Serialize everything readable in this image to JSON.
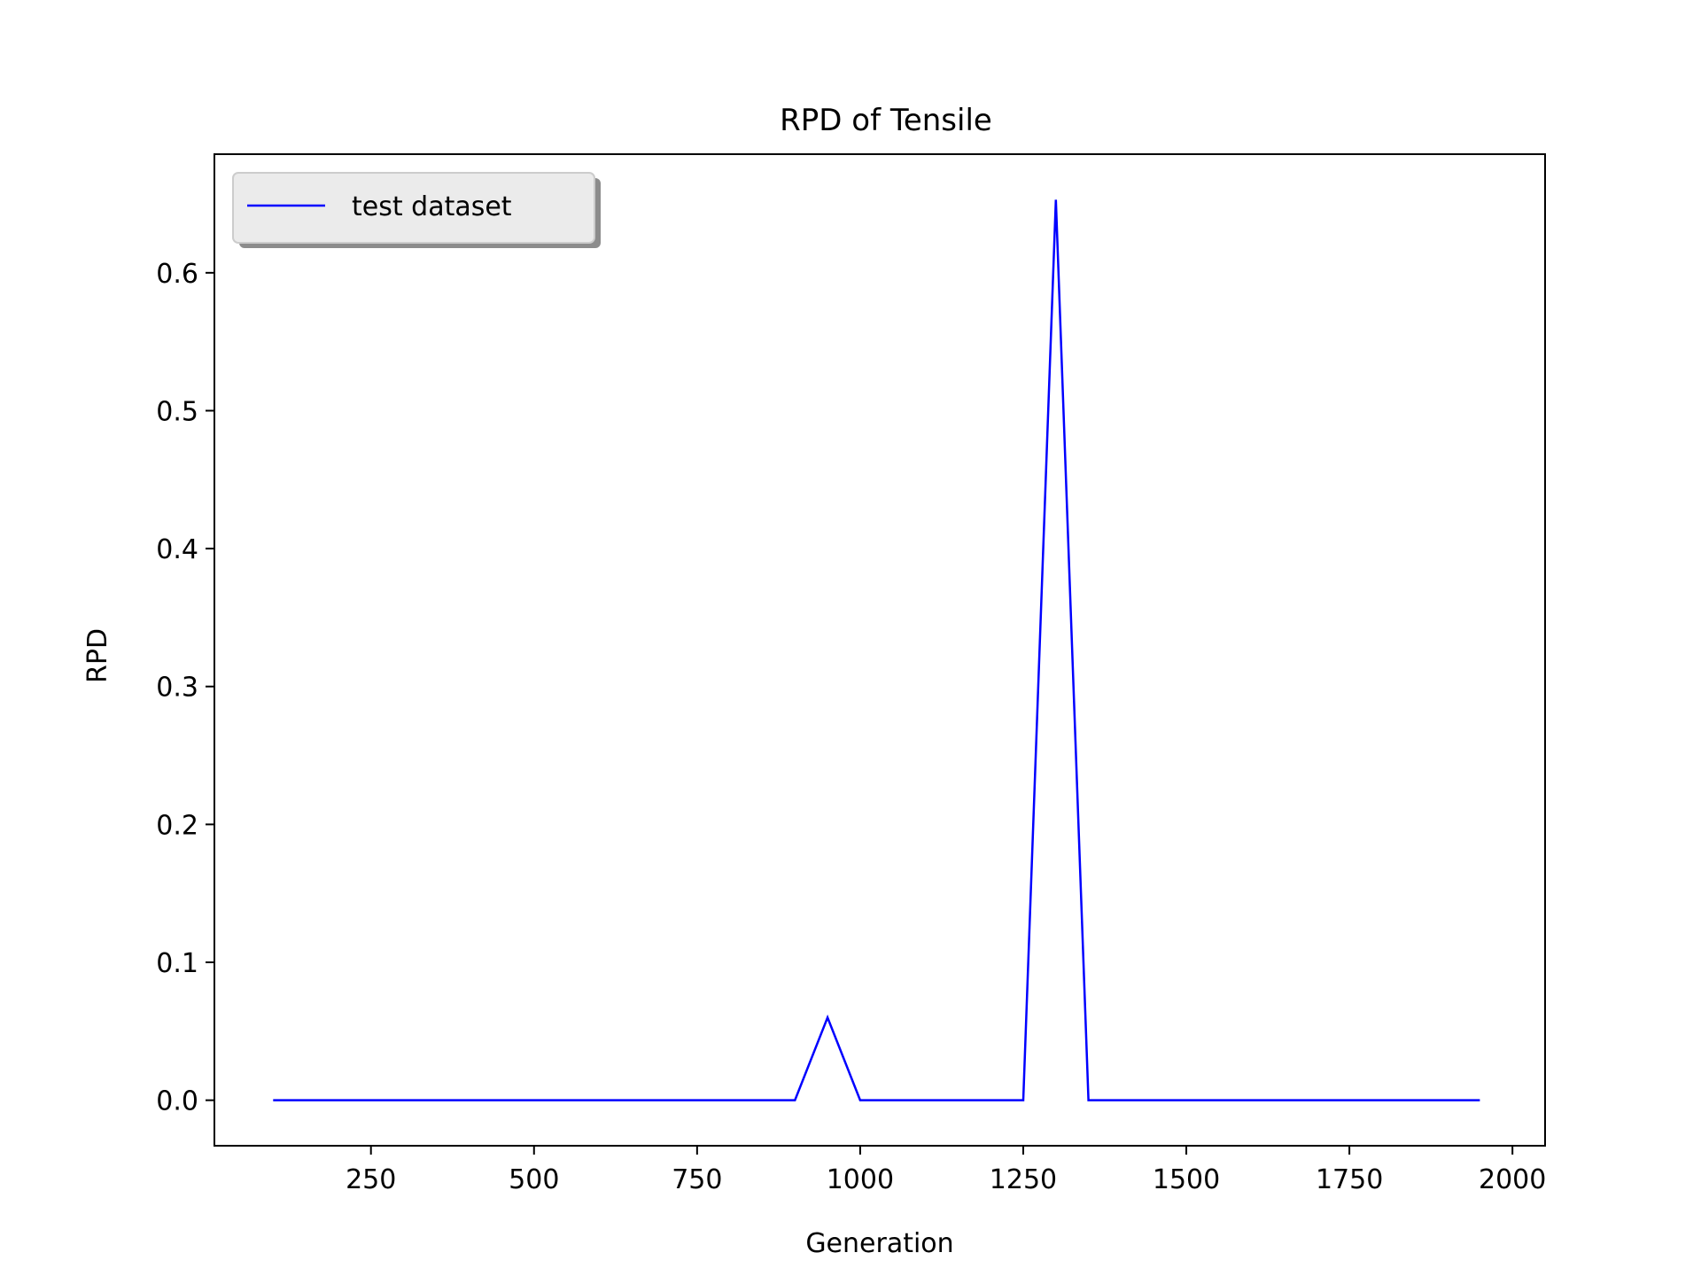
{
  "chart_data": {
    "type": "line",
    "title": "RPD of Tensile",
    "xlabel": "Generation",
    "ylabel": "RPD",
    "xlim": [
      10,
      2050
    ],
    "ylim": [
      -0.033,
      0.686
    ],
    "xticks": [
      250,
      500,
      750,
      1000,
      1250,
      1500,
      1750,
      2000
    ],
    "yticks": [
      0.0,
      0.1,
      0.2,
      0.3,
      0.4,
      0.5,
      0.6
    ],
    "ytick_labels": [
      "0.0",
      "0.1",
      "0.2",
      "0.3",
      "0.4",
      "0.5",
      "0.6"
    ],
    "grid": false,
    "legend_position": "top-left",
    "series": [
      {
        "name": "test dataset",
        "color": "#0000ff",
        "x": [
          100,
          150,
          200,
          250,
          300,
          350,
          400,
          450,
          500,
          550,
          600,
          650,
          700,
          750,
          800,
          850,
          900,
          950,
          1000,
          1050,
          1100,
          1150,
          1200,
          1250,
          1300,
          1350,
          1400,
          1450,
          1500,
          1550,
          1600,
          1650,
          1700,
          1750,
          1800,
          1850,
          1900,
          1950
        ],
        "y": [
          0,
          0,
          0,
          0,
          0,
          0,
          0,
          0,
          0,
          0,
          0,
          0,
          0,
          0,
          0,
          0,
          0,
          0.06,
          0,
          0,
          0,
          0,
          0,
          0,
          0.653,
          0,
          0,
          0,
          0,
          0,
          0,
          0,
          0,
          0,
          0,
          0,
          0,
          0
        ]
      }
    ]
  }
}
